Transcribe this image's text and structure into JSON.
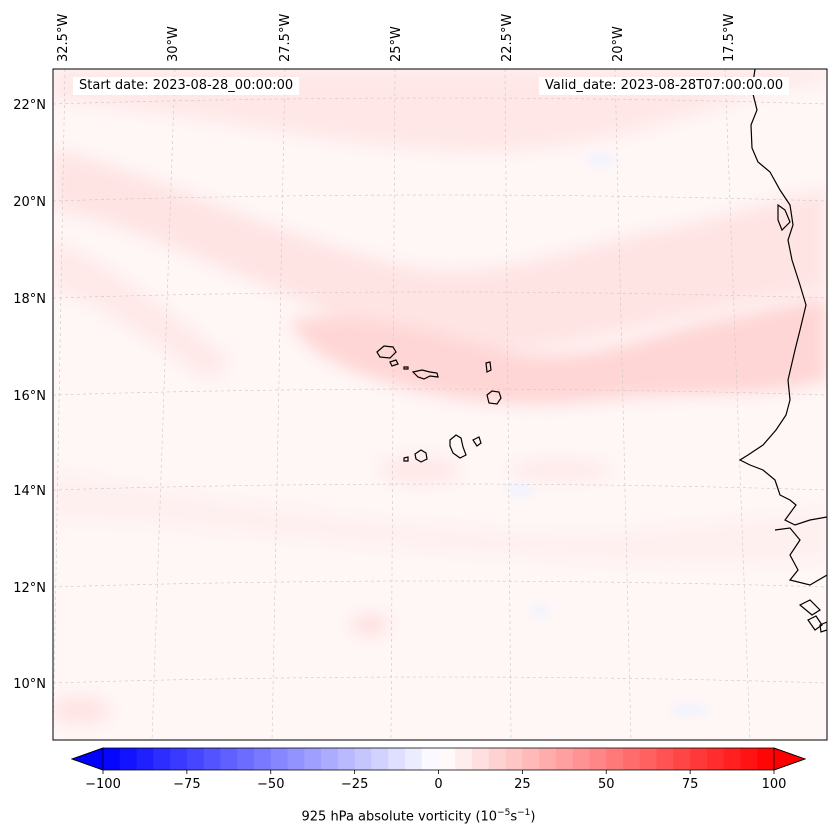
{
  "map": {
    "start_date_label": "Start date: 2023-08-28_00:00:00",
    "valid_date_label": "Valid_date: 2023-08-28T07:00:00.00",
    "lon_labels": [
      "32.5°W",
      "30°W",
      "27.5°W",
      "25°W",
      "22.5°W",
      "20°W",
      "17.5°W"
    ],
    "lat_labels": [
      "22°N",
      "20°N",
      "18°N",
      "16°N",
      "14°N",
      "12°N",
      "10°N"
    ],
    "features": [
      "Cape Verde islands",
      "West African coastline"
    ]
  },
  "colorbar": {
    "title_prefix": "925 hPa absolute vorticity (10",
    "title_exp1": "−5",
    "title_mid": "s",
    "title_exp2": "−1",
    "title_suffix": ")",
    "ticks": [
      "−100",
      "−75",
      "−50",
      "−25",
      "0",
      "25",
      "50",
      "75",
      "100"
    ],
    "min": -100,
    "max": 100,
    "neg_color": "#0000ff",
    "zero_color": "#ffffff",
    "pos_color": "#ff0000"
  }
}
